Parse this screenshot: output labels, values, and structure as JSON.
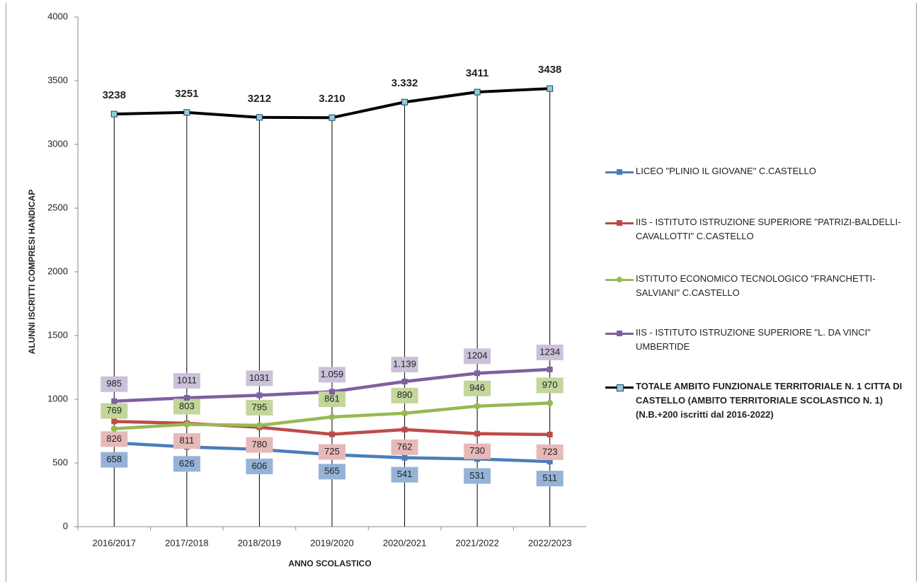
{
  "chart_data": {
    "type": "line",
    "categories": [
      "2016/2017",
      "2017/2018",
      "2018/2019",
      "2019/2020",
      "2020/2021",
      "2021/2022",
      "2022/2023"
    ],
    "xlabel": "ANNO SCOLASTICO",
    "ylabel": "ALUNNI ISCRITTI COMPRESI HANDICAP",
    "ylim": [
      0,
      4000
    ],
    "yticks": [
      0,
      500,
      1000,
      1500,
      2000,
      2500,
      3000,
      3500,
      4000
    ],
    "series": [
      {
        "name": "LICEO \"PLINIO IL GIOVANE\" C.CASTELLO",
        "color": "#4a7ebb",
        "label_bg": "#95b3d7",
        "values": [
          658,
          626,
          606,
          565,
          541,
          531,
          511
        ],
        "value_labels": [
          "658",
          "626",
          "606",
          "565",
          "541",
          "531",
          "511"
        ]
      },
      {
        "name": "IIS - ISTITUTO ISTRUZIONE SUPERIORE \"PATRIZI-BALDELLI-CAVALLOTTI\" C.CASTELLO",
        "color": "#be4b48",
        "label_bg": "#e6b9b8",
        "values": [
          826,
          811,
          780,
          725,
          762,
          730,
          723
        ],
        "value_labels": [
          "826",
          "811",
          "780",
          "725",
          "762",
          "730",
          "723"
        ]
      },
      {
        "name": "ISTITUTO ECONOMICO TECNOLOGICO \"FRANCHETTI-SALVIANI\" C.CASTELLO",
        "color": "#98b954",
        "label_bg": "#c3d69b",
        "values": [
          769,
          803,
          795,
          861,
          890,
          946,
          970
        ],
        "value_labels": [
          "769",
          "803",
          "795",
          "861",
          "890",
          "946",
          "970"
        ]
      },
      {
        "name": "IIS - ISTITUTO ISTRUZIONE SUPERIORE \"L. DA VINCI\" UMBERTIDE",
        "color": "#7d60a0",
        "label_bg": "#ccc1da",
        "values": [
          985,
          1011,
          1031,
          1059,
          1139,
          1204,
          1234
        ],
        "value_labels": [
          "985",
          "1011",
          "1031",
          "1.059",
          "1.139",
          "1204",
          "1234"
        ]
      },
      {
        "name": "TOTALE AMBITO FUNZIONALE TERRITORIALE N. 1 CITTA DI CASTELLO  (AMBITO TERRITORIALE SCOLASTICO N. 1)  (N.B.+200 iscritti dal 2016-2022)",
        "color": "#000000",
        "values": [
          3238,
          3251,
          3212,
          3210,
          3332,
          3411,
          3438
        ],
        "value_labels": [
          "3238",
          "3251",
          "3212",
          "3.210",
          "3.332",
          "3411",
          "3438"
        ]
      }
    ]
  }
}
